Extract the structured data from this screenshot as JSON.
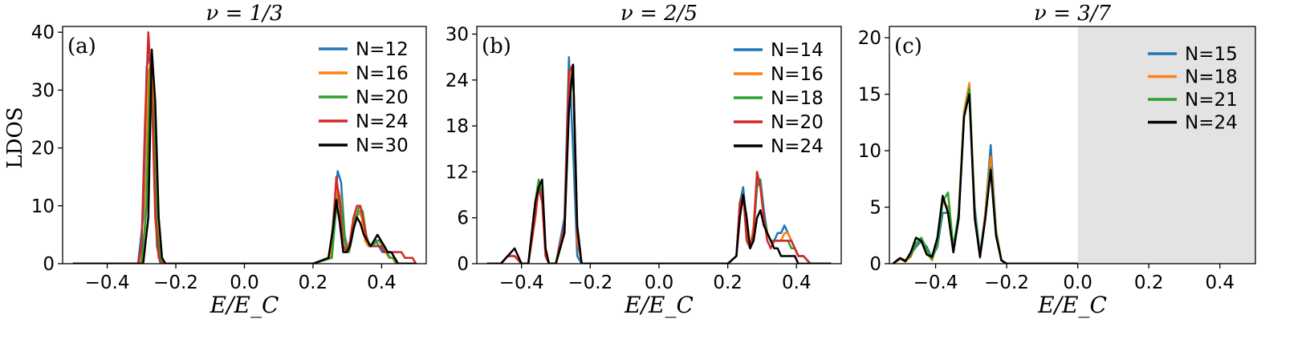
{
  "figure": {
    "ylabel": "LDOS"
  },
  "chart_data": [
    {
      "type": "line",
      "title": "ν = 1/3",
      "panel_label": "(a)",
      "xlabel": "E/E_C",
      "ylabel": "LDOS",
      "xlim": [
        -0.53,
        0.53
      ],
      "ylim": [
        0,
        41
      ],
      "xticks": [
        -0.4,
        -0.2,
        0.0,
        0.2,
        0.4
      ],
      "xtick_labels": [
        "−0.4",
        "−0.2",
        "0.0",
        "0.2",
        "0.4"
      ],
      "yticks": [
        0,
        10,
        20,
        30,
        40
      ],
      "ytick_labels": [
        "0",
        "10",
        "20",
        "30",
        "40"
      ],
      "legend_position": "top-right",
      "shaded_region": null,
      "series": [
        {
          "name": "N=12",
          "color": "#1f77b4",
          "x": [
            -0.5,
            -0.31,
            -0.295,
            -0.285,
            -0.275,
            -0.265,
            -0.255,
            -0.245,
            -0.23,
            0.2,
            0.25,
            0.262,
            0.272,
            0.282,
            0.292,
            0.302,
            0.312,
            0.322,
            0.332,
            0.342,
            0.352,
            0.362,
            0.372,
            0.382,
            0.392,
            0.402,
            0.412,
            0.422,
            0.432,
            0.442,
            0.47,
            0.5
          ],
          "y": [
            0,
            0,
            8,
            34,
            36,
            22,
            3,
            0,
            0,
            0,
            1,
            10,
            16,
            14,
            5,
            2,
            4,
            7,
            9,
            9,
            4,
            3,
            3,
            4,
            3,
            2,
            2,
            1,
            1,
            0,
            0,
            0
          ]
        },
        {
          "name": "N=16",
          "color": "#ff7f0e",
          "x": [
            -0.5,
            -0.305,
            -0.29,
            -0.28,
            -0.27,
            -0.26,
            -0.25,
            -0.24,
            -0.23,
            0.2,
            0.25,
            0.262,
            0.272,
            0.282,
            0.292,
            0.302,
            0.312,
            0.322,
            0.332,
            0.342,
            0.352,
            0.362,
            0.372,
            0.382,
            0.392,
            0.402,
            0.412,
            0.422,
            0.432,
            0.442,
            0.47,
            0.5
          ],
          "y": [
            0,
            0,
            6,
            33,
            35,
            24,
            4,
            0,
            0,
            0,
            1,
            9,
            13,
            11,
            4,
            2,
            5,
            8,
            9,
            8,
            4,
            3,
            3,
            4,
            4,
            3,
            2,
            1,
            1,
            0,
            0,
            0
          ]
        },
        {
          "name": "N=20",
          "color": "#2ca02c",
          "x": [
            -0.5,
            -0.3,
            -0.285,
            -0.275,
            -0.265,
            -0.255,
            -0.245,
            -0.235,
            0.2,
            0.255,
            0.265,
            0.275,
            0.285,
            0.295,
            0.305,
            0.315,
            0.325,
            0.335,
            0.345,
            0.355,
            0.365,
            0.375,
            0.385,
            0.395,
            0.405,
            0.415,
            0.425,
            0.435,
            0.445,
            0.47,
            0.5
          ],
          "y": [
            0,
            0,
            10,
            34,
            26,
            6,
            1,
            0,
            0,
            1,
            8,
            12,
            9,
            3,
            2,
            5,
            8,
            10,
            9,
            5,
            3,
            3,
            4,
            4,
            3,
            2,
            1,
            1,
            0,
            0,
            0
          ]
        },
        {
          "name": "N=24",
          "color": "#d62728",
          "x": [
            -0.5,
            -0.31,
            -0.3,
            -0.29,
            -0.28,
            -0.27,
            -0.26,
            -0.25,
            -0.24,
            0.2,
            0.245,
            0.258,
            0.268,
            0.278,
            0.288,
            0.298,
            0.308,
            0.318,
            0.328,
            0.338,
            0.348,
            0.358,
            0.368,
            0.378,
            0.388,
            0.398,
            0.408,
            0.418,
            0.428,
            0.438,
            0.448,
            0.458,
            0.468,
            0.478,
            0.49,
            0.5
          ],
          "y": [
            0,
            0,
            3,
            24,
            40,
            30,
            8,
            1,
            0,
            0,
            1,
            6,
            15,
            10,
            3,
            2,
            4,
            8,
            10,
            10,
            7,
            4,
            3,
            3,
            3,
            3,
            2,
            2,
            2,
            2,
            2,
            2,
            1,
            1,
            1,
            0
          ]
        },
        {
          "name": "N=30",
          "color": "#000000",
          "x": [
            -0.5,
            -0.295,
            -0.28,
            -0.27,
            -0.26,
            -0.25,
            -0.24,
            -0.23,
            0.2,
            0.245,
            0.258,
            0.268,
            0.278,
            0.288,
            0.298,
            0.308,
            0.318,
            0.328,
            0.338,
            0.348,
            0.358,
            0.368,
            0.378,
            0.388,
            0.398,
            0.408,
            0.418,
            0.428,
            0.438,
            0.448,
            0.47,
            0.5
          ],
          "y": [
            0,
            0,
            8,
            37,
            28,
            8,
            1,
            0,
            0,
            1,
            6,
            11,
            7,
            2,
            2,
            3,
            6,
            8,
            7,
            5,
            4,
            3,
            4,
            5,
            4,
            3,
            2,
            2,
            1,
            0,
            0,
            0
          ]
        }
      ]
    },
    {
      "type": "line",
      "title": "ν = 2/5",
      "panel_label": "(b)",
      "xlabel": "E/E_C",
      "ylabel": "",
      "xlim": [
        -0.53,
        0.53
      ],
      "ylim": [
        0,
        31
      ],
      "xticks": [
        -0.4,
        -0.2,
        0.0,
        0.2,
        0.4
      ],
      "xtick_labels": [
        "−0.4",
        "−0.2",
        "0.0",
        "0.2",
        "0.4"
      ],
      "yticks": [
        0,
        6,
        12,
        18,
        24,
        30
      ],
      "ytick_labels": [
        "0",
        "6",
        "12",
        "18",
        "24",
        "30"
      ],
      "legend_position": "top-right",
      "shaded_region": null,
      "series": [
        {
          "name": "N=14",
          "color": "#1f77b4",
          "x": [
            -0.5,
            -0.46,
            -0.44,
            -0.42,
            -0.4,
            -0.38,
            -0.36,
            -0.35,
            -0.34,
            -0.33,
            -0.32,
            -0.3,
            -0.275,
            -0.262,
            -0.25,
            -0.238,
            -0.225,
            -0.2,
            0.2,
            0.225,
            0.235,
            0.245,
            0.255,
            0.265,
            0.275,
            0.285,
            0.295,
            0.305,
            0.315,
            0.325,
            0.335,
            0.345,
            0.355,
            0.365,
            0.375,
            0.385,
            0.395,
            0.405,
            0.42,
            0.44,
            0.5
          ],
          "y": [
            0,
            0,
            1,
            1,
            0,
            0,
            7,
            10,
            9,
            1,
            0,
            0,
            6,
            27,
            15,
            1,
            0,
            0,
            0,
            1,
            8,
            10,
            5,
            2,
            4,
            10,
            11,
            7,
            4,
            3,
            3,
            4,
            4,
            5,
            4,
            3,
            2,
            1,
            1,
            0,
            0
          ]
        },
        {
          "name": "N=16",
          "color": "#ff7f0e",
          "x": [
            -0.5,
            -0.46,
            -0.44,
            -0.42,
            -0.4,
            -0.38,
            -0.36,
            -0.35,
            -0.34,
            -0.33,
            -0.32,
            -0.3,
            -0.275,
            -0.262,
            -0.25,
            -0.238,
            -0.225,
            -0.2,
            0.2,
            0.225,
            0.235,
            0.245,
            0.255,
            0.265,
            0.275,
            0.285,
            0.295,
            0.305,
            0.315,
            0.325,
            0.335,
            0.345,
            0.355,
            0.365,
            0.375,
            0.385,
            0.395,
            0.405,
            0.42,
            0.44,
            0.5
          ],
          "y": [
            0,
            0,
            1,
            1,
            0,
            0,
            6,
            10,
            9,
            1,
            0,
            0,
            5,
            24,
            26,
            3,
            0,
            0,
            0,
            1,
            7,
            9,
            4,
            2,
            5,
            12,
            10,
            6,
            4,
            3,
            3,
            3,
            3,
            4,
            4,
            3,
            2,
            1,
            1,
            0,
            0
          ]
        },
        {
          "name": "N=18",
          "color": "#2ca02c",
          "x": [
            -0.5,
            -0.46,
            -0.44,
            -0.42,
            -0.4,
            -0.38,
            -0.36,
            -0.35,
            -0.34,
            -0.33,
            -0.32,
            -0.3,
            -0.275,
            -0.262,
            -0.25,
            -0.238,
            -0.225,
            -0.2,
            0.2,
            0.225,
            0.235,
            0.245,
            0.255,
            0.265,
            0.275,
            0.285,
            0.295,
            0.305,
            0.315,
            0.325,
            0.335,
            0.345,
            0.355,
            0.365,
            0.375,
            0.385,
            0.395,
            0.405,
            0.42,
            0.44,
            0.5
          ],
          "y": [
            0,
            0,
            1,
            1,
            0,
            0,
            8,
            11,
            9,
            1,
            0,
            0,
            4,
            22,
            25,
            4,
            0,
            0,
            0,
            1,
            8,
            9,
            4,
            2,
            4,
            11,
            11,
            6,
            4,
            3,
            3,
            3,
            3,
            3,
            3,
            2,
            2,
            1,
            1,
            0,
            0
          ]
        },
        {
          "name": "N=20",
          "color": "#d62728",
          "x": [
            -0.5,
            -0.46,
            -0.44,
            -0.42,
            -0.4,
            -0.38,
            -0.36,
            -0.35,
            -0.34,
            -0.33,
            -0.32,
            -0.3,
            -0.275,
            -0.262,
            -0.25,
            -0.238,
            -0.225,
            -0.2,
            0.2,
            0.225,
            0.235,
            0.245,
            0.255,
            0.265,
            0.275,
            0.285,
            0.295,
            0.305,
            0.315,
            0.325,
            0.335,
            0.345,
            0.355,
            0.365,
            0.375,
            0.385,
            0.395,
            0.405,
            0.42,
            0.44,
            0.5
          ],
          "y": [
            0,
            0,
            1,
            1,
            0,
            0,
            6,
            10,
            8,
            1,
            0,
            0,
            5,
            25,
            26,
            4,
            0,
            0,
            0,
            1,
            8,
            9,
            3,
            2,
            4,
            12,
            10,
            6,
            3,
            2,
            3,
            3,
            3,
            3,
            3,
            3,
            2,
            1,
            1,
            0,
            0
          ]
        },
        {
          "name": "N=24",
          "color": "#000000",
          "x": [
            -0.5,
            -0.46,
            -0.44,
            -0.42,
            -0.4,
            -0.38,
            -0.36,
            -0.35,
            -0.34,
            -0.33,
            -0.32,
            -0.3,
            -0.275,
            -0.262,
            -0.25,
            -0.238,
            -0.225,
            -0.2,
            0.2,
            0.225,
            0.235,
            0.245,
            0.255,
            0.265,
            0.275,
            0.285,
            0.295,
            0.305,
            0.315,
            0.325,
            0.335,
            0.345,
            0.355,
            0.365,
            0.375,
            0.385,
            0.395,
            0.405,
            0.42,
            0.44,
            0.5
          ],
          "y": [
            0,
            0,
            1,
            2,
            0,
            0,
            8,
            10,
            11,
            2,
            0,
            0,
            4,
            20,
            26,
            5,
            0,
            0,
            0,
            1,
            6,
            9,
            6,
            2,
            3,
            6,
            7,
            5,
            4,
            3,
            2,
            2,
            1,
            1,
            1,
            1,
            1,
            0,
            0,
            0,
            0
          ]
        }
      ]
    },
    {
      "type": "line",
      "title": "ν = 3/7",
      "panel_label": "(c)",
      "xlabel": "E/E_C",
      "ylabel": "",
      "xlim": [
        -0.53,
        0.5
      ],
      "ylim": [
        0,
        21
      ],
      "xticks": [
        -0.4,
        -0.2,
        0.0,
        0.2,
        0.4
      ],
      "xtick_labels": [
        "−0.4",
        "−0.2",
        "0.0",
        "0.2",
        "0.4"
      ],
      "yticks": [
        0,
        5,
        10,
        15,
        20
      ],
      "ytick_labels": [
        "0",
        "5",
        "10",
        "15",
        "20"
      ],
      "legend_position": "top-right",
      "shaded_region": [
        0.0,
        0.5
      ],
      "series": [
        {
          "name": "N=15",
          "color": "#1f77b4",
          "x": [
            -0.52,
            -0.5,
            -0.485,
            -0.47,
            -0.455,
            -0.44,
            -0.425,
            -0.41,
            -0.395,
            -0.38,
            -0.365,
            -0.35,
            -0.335,
            -0.32,
            -0.305,
            -0.29,
            -0.275,
            -0.26,
            -0.245,
            -0.23,
            -0.215,
            -0.2,
            0.0
          ],
          "y": [
            0,
            0.5,
            0.3,
            0.8,
            1.5,
            2.0,
            1.5,
            0.5,
            1.5,
            4.5,
            4.5,
            1.5,
            4.0,
            13.5,
            15.0,
            5.0,
            0.8,
            4.5,
            10.5,
            3.0,
            0.3,
            0,
            0
          ]
        },
        {
          "name": "N=18",
          "color": "#ff7f0e",
          "x": [
            -0.52,
            -0.5,
            -0.485,
            -0.47,
            -0.455,
            -0.44,
            -0.425,
            -0.41,
            -0.395,
            -0.38,
            -0.365,
            -0.35,
            -0.335,
            -0.32,
            -0.305,
            -0.29,
            -0.275,
            -0.26,
            -0.245,
            -0.23,
            -0.215,
            -0.2,
            0.0
          ],
          "y": [
            0,
            0.4,
            0.2,
            0.6,
            1.8,
            2.2,
            1.0,
            0.3,
            1.8,
            5.5,
            5.0,
            1.2,
            4.5,
            13.5,
            16.0,
            4.5,
            0.5,
            4.5,
            9.5,
            3.0,
            0.3,
            0,
            0
          ]
        },
        {
          "name": "N=21",
          "color": "#2ca02c",
          "x": [
            -0.52,
            -0.5,
            -0.485,
            -0.47,
            -0.455,
            -0.44,
            -0.425,
            -0.41,
            -0.395,
            -0.38,
            -0.365,
            -0.35,
            -0.335,
            -0.32,
            -0.305,
            -0.29,
            -0.275,
            -0.26,
            -0.245,
            -0.23,
            -0.215,
            -0.2,
            0.0
          ],
          "y": [
            0,
            0.5,
            0.3,
            0.7,
            1.8,
            2.3,
            1.3,
            0.4,
            1.8,
            5.5,
            6.3,
            1.4,
            4.5,
            13.0,
            15.5,
            4.5,
            0.6,
            4.0,
            8.5,
            2.8,
            0.3,
            0,
            0
          ]
        },
        {
          "name": "N=24",
          "color": "#000000",
          "x": [
            -0.52,
            -0.5,
            -0.485,
            -0.47,
            -0.455,
            -0.44,
            -0.425,
            -0.41,
            -0.395,
            -0.38,
            -0.365,
            -0.35,
            -0.335,
            -0.32,
            -0.305,
            -0.29,
            -0.275,
            -0.26,
            -0.245,
            -0.23,
            -0.215,
            -0.2,
            0.0
          ],
          "y": [
            0,
            0.5,
            0.2,
            1.0,
            2.3,
            2.0,
            0.8,
            0.6,
            2.3,
            6.0,
            4.5,
            1.0,
            4.0,
            13.0,
            15.0,
            4.0,
            0.6,
            4.0,
            8.3,
            2.5,
            0.3,
            0,
            0
          ]
        }
      ]
    }
  ]
}
